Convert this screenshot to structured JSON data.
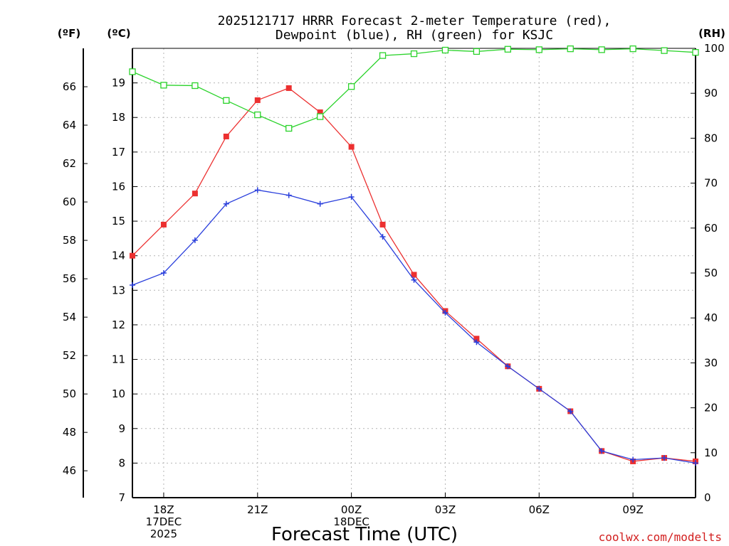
{
  "chart_data": {
    "type": "line",
    "title": [
      "2025121717 HRRR Forecast 2-meter Temperature (red),",
      "Dewpoint (blue), RH (green) for KSJC"
    ],
    "xlabel": "Forecast Time (UTC)",
    "credit": "coolwx.com/modelts",
    "axis_units": {
      "fahrenheit": "(ºF)",
      "celsius": "(ºC)",
      "rh": "(RH)"
    },
    "x": [
      17,
      18,
      19,
      20,
      21,
      22,
      23,
      24,
      25,
      26,
      27,
      28,
      29,
      30,
      31,
      32,
      33,
      34,
      35
    ],
    "x_range": [
      17,
      35
    ],
    "x_ticks": [
      {
        "x": 18,
        "lines": [
          "18Z",
          "17DEC",
          "2025"
        ]
      },
      {
        "x": 21,
        "lines": [
          "21Z"
        ]
      },
      {
        "x": 24,
        "lines": [
          "00Z",
          "18DEC"
        ]
      },
      {
        "x": 27,
        "lines": [
          "03Z"
        ]
      },
      {
        "x": 30,
        "lines": [
          "06Z"
        ]
      },
      {
        "x": 33,
        "lines": [
          "09Z"
        ]
      }
    ],
    "y_celsius": {
      "range": [
        7,
        20
      ],
      "ticks": [
        7,
        8,
        9,
        10,
        11,
        12,
        13,
        14,
        15,
        16,
        17,
        18,
        19
      ]
    },
    "y_fahrenheit": {
      "ticks": [
        46,
        48,
        50,
        52,
        54,
        56,
        58,
        60,
        62,
        64,
        66
      ]
    },
    "y_rh": {
      "range": [
        0,
        100
      ],
      "ticks": [
        0,
        10,
        20,
        30,
        40,
        50,
        60,
        70,
        80,
        90,
        100
      ]
    },
    "grid": true,
    "series": [
      {
        "name": "Temperature",
        "axis": "celsius",
        "color": "#ec3030",
        "marker": "filled-square",
        "values": [
          14.0,
          14.9,
          15.8,
          17.45,
          18.5,
          18.85,
          18.15,
          17.15,
          14.9,
          13.45,
          12.4,
          11.6,
          10.8,
          10.15,
          9.5,
          8.35,
          8.05,
          8.15,
          8.05
        ]
      },
      {
        "name": "Dewpoint",
        "axis": "celsius",
        "color": "#2a3fdc",
        "marker": "plus",
        "values": [
          13.15,
          13.5,
          14.45,
          15.5,
          15.9,
          15.75,
          15.5,
          15.7,
          14.55,
          13.3,
          12.35,
          11.5,
          10.8,
          10.15,
          9.5,
          8.35,
          8.1,
          8.15,
          8.0
        ]
      },
      {
        "name": "RH",
        "axis": "rh",
        "color": "#2bd32b",
        "marker": "open-square",
        "values": [
          94.8,
          91.8,
          91.7,
          88.4,
          85.2,
          82.2,
          84.8,
          91.5,
          98.4,
          98.8,
          99.6,
          99.3,
          99.8,
          99.7,
          99.9,
          99.7,
          99.9,
          99.5,
          99.1
        ]
      }
    ]
  }
}
